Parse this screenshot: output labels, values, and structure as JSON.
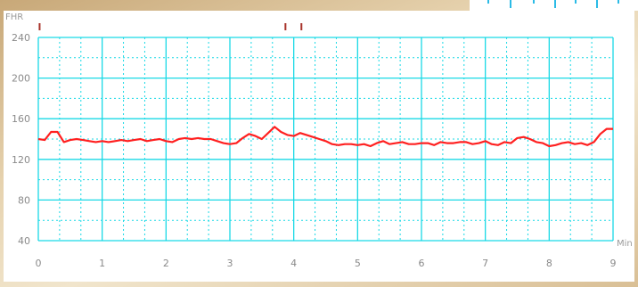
{
  "chart_data": {
    "type": "line",
    "title": "",
    "ylabel": "FHR",
    "xlabel": "Min",
    "xlim": [
      0,
      9
    ],
    "ylim": [
      40,
      240
    ],
    "x_ticks": [
      0,
      1,
      2,
      3,
      4,
      5,
      6,
      7,
      8,
      9
    ],
    "y_ticks": [
      40,
      80,
      120,
      160,
      200,
      240
    ],
    "grid": true,
    "legend": "none",
    "event_marks_x": [
      0.02,
      3.87,
      4.12
    ],
    "series": [
      {
        "color": "#ff2020",
        "x": [
          0,
          0.1,
          0.2,
          0.3,
          0.4,
          0.5,
          0.6,
          0.7,
          0.8,
          0.9,
          1.0,
          1.1,
          1.2,
          1.3,
          1.4,
          1.5,
          1.6,
          1.7,
          1.8,
          1.9,
          2.0,
          2.1,
          2.2,
          2.3,
          2.4,
          2.5,
          2.6,
          2.7,
          2.8,
          2.9,
          3.0,
          3.1,
          3.2,
          3.3,
          3.4,
          3.5,
          3.6,
          3.7,
          3.8,
          3.9,
          4.0,
          4.1,
          4.2,
          4.3,
          4.4,
          4.5,
          4.6,
          4.7,
          4.8,
          4.9,
          5.0,
          5.1,
          5.2,
          5.3,
          5.4,
          5.5,
          5.6,
          5.7,
          5.8,
          5.9,
          6.0,
          6.1,
          6.2,
          6.3,
          6.4,
          6.5,
          6.6,
          6.7,
          6.8,
          6.9,
          7.0,
          7.1,
          7.2,
          7.3,
          7.4,
          7.5,
          7.6,
          7.7,
          7.8,
          7.9,
          8.0,
          8.1,
          8.2,
          8.3,
          8.4,
          8.5,
          8.6,
          8.7,
          8.8,
          8.9,
          9.0
        ],
        "values": [
          140,
          139,
          147,
          147,
          137,
          139,
          140,
          139,
          138,
          137,
          138,
          137,
          138,
          139,
          138,
          139,
          140,
          138,
          139,
          140,
          138,
          137,
          140,
          141,
          140,
          141,
          140,
          140,
          138,
          136,
          135,
          136,
          141,
          145,
          143,
          140,
          146,
          152,
          147,
          144,
          143,
          146,
          144,
          142,
          140,
          138,
          135,
          134,
          135,
          135,
          134,
          135,
          133,
          136,
          138,
          135,
          136,
          137,
          135,
          135,
          136,
          136,
          134,
          137,
          136,
          136,
          137,
          137,
          135,
          136,
          138,
          135,
          134,
          137,
          136,
          141,
          142,
          140,
          137,
          136,
          133,
          134,
          136,
          137,
          135,
          136,
          134,
          137,
          145,
          150,
          150
        ]
      }
    ]
  }
}
